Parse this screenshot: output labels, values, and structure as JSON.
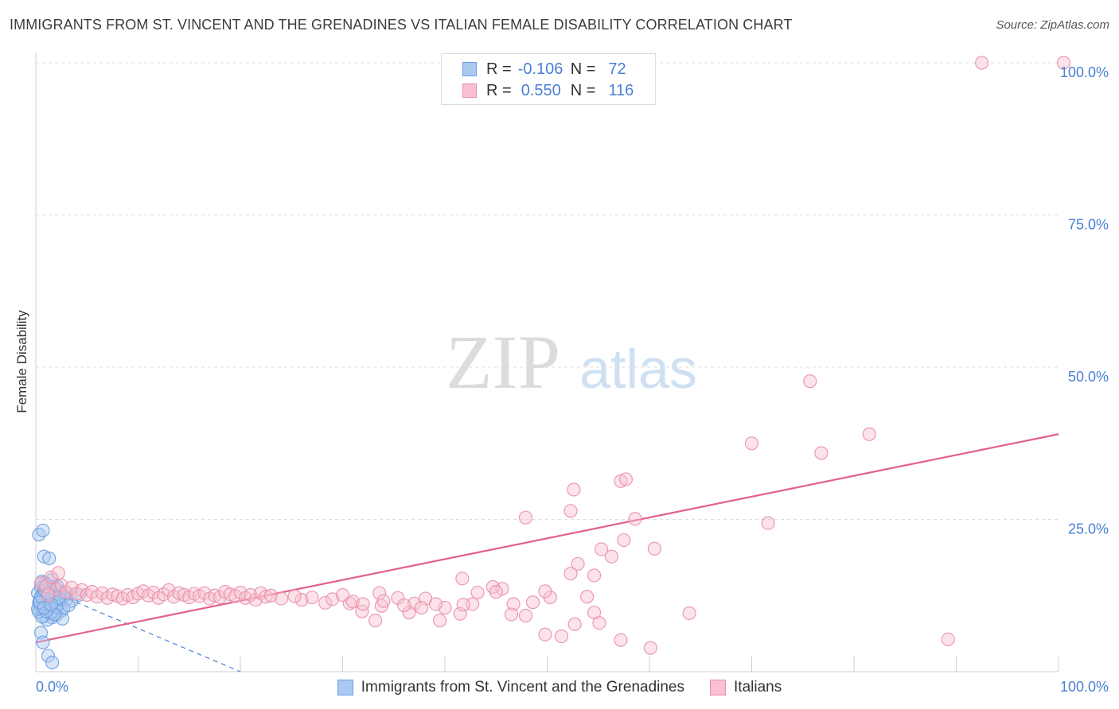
{
  "header": {
    "title": "IMMIGRANTS FROM ST. VINCENT AND THE GRENADINES VS ITALIAN FEMALE DISABILITY CORRELATION CHART",
    "source": "Source: ZipAtlas.com"
  },
  "watermark": {
    "zip": "ZIP",
    "atlas": "atlas"
  },
  "stats_legend": {
    "rows": [
      {
        "r_label": "R =",
        "r_value": "-0.106",
        "n_label": "N =",
        "n_value": "72",
        "color": "#aac8f0",
        "border": "#6c9ee0"
      },
      {
        "r_label": "R =",
        "r_value": "0.550",
        "n_label": "N =",
        "n_value": "116",
        "color": "#f8c0d0",
        "border": "#e890aa"
      }
    ]
  },
  "bottom_legend": {
    "items": [
      {
        "label": "Immigrants from St. Vincent and the Grenadines",
        "color": "#aac8f0",
        "border": "#6c9ee0"
      },
      {
        "label": "Italians",
        "color": "#f8c0d0",
        "border": "#e890aa"
      }
    ]
  },
  "chart_data": {
    "type": "scatter",
    "ylabel": "Female Disability",
    "x_ticks": [
      "0.0%",
      "100.0%"
    ],
    "y_ticks": [
      "25.0%",
      "50.0%",
      "75.0%",
      "100.0%"
    ],
    "xlim": [
      0,
      100
    ],
    "ylim": [
      0,
      100
    ],
    "grid": true,
    "series": [
      {
        "name": "Immigrants from St. Vincent and the Grenadines",
        "color": "#6c9ee0",
        "fill": "#aac8f0",
        "trend": {
          "x0": 0,
          "y0": 14.2,
          "x1": 20,
          "y1": 0,
          "style": "dashed",
          "color": "#4a7fd4"
        },
        "points": [
          [
            0.3,
            22.5
          ],
          [
            0.7,
            23.2
          ],
          [
            0.8,
            18.9
          ],
          [
            1.3,
            18.6
          ],
          [
            1.6,
            15.1
          ],
          [
            0.5,
            13.8
          ],
          [
            1.0,
            13.5
          ],
          [
            1.4,
            13.0
          ],
          [
            0.6,
            12.7
          ],
          [
            1.1,
            12.4
          ],
          [
            1.9,
            12.1
          ],
          [
            0.4,
            11.9
          ],
          [
            1.2,
            11.7
          ],
          [
            1.7,
            11.4
          ],
          [
            0.9,
            11.2
          ],
          [
            2.2,
            11.0
          ],
          [
            0.6,
            10.8
          ],
          [
            1.5,
            10.5
          ],
          [
            1.0,
            10.2
          ],
          [
            2.5,
            10.0
          ],
          [
            0.3,
            9.8
          ],
          [
            1.3,
            9.6
          ],
          [
            2.0,
            9.3
          ],
          [
            0.8,
            9.1
          ],
          [
            1.6,
            8.9
          ],
          [
            2.6,
            8.7
          ],
          [
            1.1,
            8.5
          ],
          [
            0.5,
            6.4
          ],
          [
            0.7,
            4.8
          ],
          [
            1.2,
            2.6
          ],
          [
            1.6,
            1.5
          ],
          [
            2.4,
            13.2
          ],
          [
            0.2,
            12.9
          ],
          [
            1.8,
            13.9
          ],
          [
            0.9,
            14.6
          ],
          [
            2.8,
            12.5
          ],
          [
            0.4,
            10.6
          ],
          [
            1.4,
            12.0
          ],
          [
            2.1,
            14.0
          ],
          [
            0.6,
            9.0
          ],
          [
            1.0,
            11.5
          ],
          [
            1.7,
            10.9
          ],
          [
            3.0,
            11.8
          ],
          [
            0.8,
            13.1
          ],
          [
            1.2,
            10.1
          ],
          [
            2.3,
            12.8
          ],
          [
            0.3,
            11.3
          ],
          [
            1.5,
            9.7
          ],
          [
            1.9,
            13.6
          ],
          [
            0.7,
            12.2
          ],
          [
            3.5,
            11.6
          ],
          [
            4.2,
            12.6
          ],
          [
            2.7,
            10.4
          ],
          [
            1.1,
            14.3
          ],
          [
            0.5,
            12.3
          ],
          [
            1.3,
            11.1
          ],
          [
            2.0,
            10.7
          ],
          [
            0.9,
            13.3
          ],
          [
            1.6,
            12.4
          ],
          [
            2.4,
            11.9
          ],
          [
            0.2,
            10.3
          ],
          [
            1.8,
            9.4
          ],
          [
            0.6,
            14.8
          ],
          [
            1.4,
            13.7
          ],
          [
            2.9,
            13.0
          ],
          [
            1.0,
            9.9
          ],
          [
            3.2,
            10.9
          ],
          [
            0.4,
            11.4
          ],
          [
            2.2,
            12.1
          ],
          [
            1.2,
            12.9
          ],
          [
            0.8,
            10.5
          ],
          [
            1.5,
            11.0
          ]
        ]
      },
      {
        "name": "Italians",
        "color": "#e890aa",
        "fill": "#f8c0d0",
        "trend": {
          "x0": 0,
          "y0": 4.8,
          "x1": 100,
          "y1": 39.0,
          "style": "solid",
          "color": "#e4608a"
        },
        "points": [
          [
            92.5,
            100.0
          ],
          [
            100.5,
            100.0
          ],
          [
            75.7,
            47.7
          ],
          [
            81.5,
            39.0
          ],
          [
            70.0,
            37.5
          ],
          [
            76.8,
            35.9
          ],
          [
            57.2,
            31.3
          ],
          [
            52.6,
            29.9
          ],
          [
            52.3,
            26.4
          ],
          [
            47.9,
            25.3
          ],
          [
            57.5,
            21.6
          ],
          [
            71.6,
            24.4
          ],
          [
            60.5,
            20.2
          ],
          [
            57.7,
            31.6
          ],
          [
            58.6,
            25.1
          ],
          [
            55.3,
            20.1
          ],
          [
            56.3,
            18.9
          ],
          [
            41.7,
            15.3
          ],
          [
            52.3,
            16.1
          ],
          [
            45.6,
            13.6
          ],
          [
            44.7,
            13.9
          ],
          [
            38.1,
            12.0
          ],
          [
            43.2,
            13.0
          ],
          [
            50.3,
            12.2
          ],
          [
            45.0,
            13.1
          ],
          [
            48.6,
            11.4
          ],
          [
            35.4,
            12.1
          ],
          [
            47.9,
            9.2
          ],
          [
            37.0,
            11.2
          ],
          [
            40.0,
            10.5
          ],
          [
            39.1,
            11.1
          ],
          [
            30.7,
            11.2
          ],
          [
            28.3,
            11.3
          ],
          [
            26.0,
            11.8
          ],
          [
            25.3,
            12.4
          ],
          [
            33.6,
            12.9
          ],
          [
            33.8,
            10.8
          ],
          [
            36.5,
            9.7
          ],
          [
            31.9,
            9.9
          ],
          [
            33.2,
            8.4
          ],
          [
            41.5,
            9.5
          ],
          [
            42.7,
            11.1
          ],
          [
            39.5,
            8.4
          ],
          [
            37.7,
            10.5
          ],
          [
            41.8,
            11.0
          ],
          [
            46.7,
            11.1
          ],
          [
            54.6,
            15.8
          ],
          [
            53.9,
            12.3
          ],
          [
            49.8,
            13.2
          ],
          [
            53.0,
            17.7
          ],
          [
            46.5,
            9.4
          ],
          [
            51.4,
            5.8
          ],
          [
            49.8,
            6.1
          ],
          [
            54.6,
            9.7
          ],
          [
            52.7,
            7.8
          ],
          [
            55.1,
            8.0
          ],
          [
            57.2,
            5.2
          ],
          [
            60.1,
            3.9
          ],
          [
            63.9,
            9.6
          ],
          [
            89.2,
            5.3
          ],
          [
            0.5,
            14.5
          ],
          [
            1.0,
            14.0
          ],
          [
            1.5,
            15.5
          ],
          [
            2.0,
            13.5
          ],
          [
            2.5,
            14.2
          ],
          [
            3.0,
            13.0
          ],
          [
            3.5,
            13.8
          ],
          [
            4.0,
            12.8
          ],
          [
            4.5,
            13.4
          ],
          [
            5.0,
            12.6
          ],
          [
            5.5,
            13.1
          ],
          [
            6.0,
            12.3
          ],
          [
            6.5,
            12.9
          ],
          [
            7.0,
            12.1
          ],
          [
            7.5,
            12.7
          ],
          [
            8.0,
            12.4
          ],
          [
            8.5,
            12.0
          ],
          [
            9.0,
            12.6
          ],
          [
            9.5,
            12.2
          ],
          [
            10.0,
            12.8
          ],
          [
            10.5,
            13.2
          ],
          [
            11.0,
            12.5
          ],
          [
            11.5,
            13.0
          ],
          [
            12.0,
            12.1
          ],
          [
            12.5,
            12.7
          ],
          [
            13.0,
            13.4
          ],
          [
            13.5,
            12.3
          ],
          [
            14.0,
            12.9
          ],
          [
            14.5,
            12.6
          ],
          [
            15.0,
            12.2
          ],
          [
            15.5,
            12.8
          ],
          [
            16.0,
            12.4
          ],
          [
            16.5,
            12.9
          ],
          [
            17.0,
            12.0
          ],
          [
            17.5,
            12.5
          ],
          [
            18.0,
            12.2
          ],
          [
            18.5,
            13.1
          ],
          [
            19.0,
            12.7
          ],
          [
            19.5,
            12.4
          ],
          [
            20.0,
            13.0
          ],
          [
            20.5,
            12.1
          ],
          [
            21.0,
            12.6
          ],
          [
            21.5,
            11.8
          ],
          [
            22.0,
            12.9
          ],
          [
            22.5,
            12.3
          ],
          [
            23.0,
            12.5
          ],
          [
            24.0,
            12.0
          ],
          [
            27.0,
            12.2
          ],
          [
            29.0,
            11.9
          ],
          [
            30.0,
            12.6
          ],
          [
            31.0,
            11.5
          ],
          [
            32.0,
            11.1
          ],
          [
            34.0,
            11.6
          ],
          [
            36.0,
            10.9
          ],
          [
            2.2,
            16.2
          ],
          [
            1.2,
            12.6
          ]
        ]
      }
    ]
  }
}
